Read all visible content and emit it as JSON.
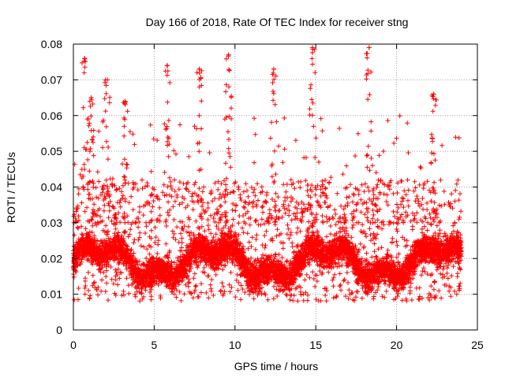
{
  "chart_data": {
    "type": "scatter",
    "title": "Day 166 of 2018, Rate Of TEC Index for receiver stng",
    "xlabel": "GPS time / hours",
    "ylabel": "ROTI / TECUs",
    "xlim": [
      0,
      25
    ],
    "ylim": [
      0,
      0.08
    ],
    "xticks": [
      0,
      5,
      10,
      15,
      20,
      25
    ],
    "xtick_labels": [
      "0",
      "5",
      "10",
      "15",
      "20",
      "25"
    ],
    "yticks": [
      0,
      0.01,
      0.02,
      0.03,
      0.04,
      0.05,
      0.06,
      0.07,
      0.08
    ],
    "ytick_labels": [
      "0",
      "0.01",
      "0.02",
      "0.03",
      "0.04",
      "0.05",
      "0.06",
      "0.07",
      "0.08"
    ],
    "grid": true,
    "marker": "+",
    "series": [
      {
        "name": "ROTI",
        "color": "#ff0000",
        "x_range": [
          0,
          24
        ],
        "typical_y_range": [
          0.01,
          0.03
        ],
        "note": "dense red '+' markers covering approximately 0.005-0.045 TECU throughout 0-24 h with sparse peaks up to ~0.079",
        "peaks": [
          {
            "x": 0.7,
            "y": 0.076
          },
          {
            "x": 1.1,
            "y": 0.065
          },
          {
            "x": 2.1,
            "y": 0.07
          },
          {
            "x": 3.2,
            "y": 0.064
          },
          {
            "x": 5.8,
            "y": 0.074
          },
          {
            "x": 7.8,
            "y": 0.073
          },
          {
            "x": 9.6,
            "y": 0.077
          },
          {
            "x": 12.4,
            "y": 0.073
          },
          {
            "x": 14.8,
            "y": 0.079
          },
          {
            "x": 18.3,
            "y": 0.079
          },
          {
            "x": 22.3,
            "y": 0.066
          }
        ]
      }
    ]
  }
}
